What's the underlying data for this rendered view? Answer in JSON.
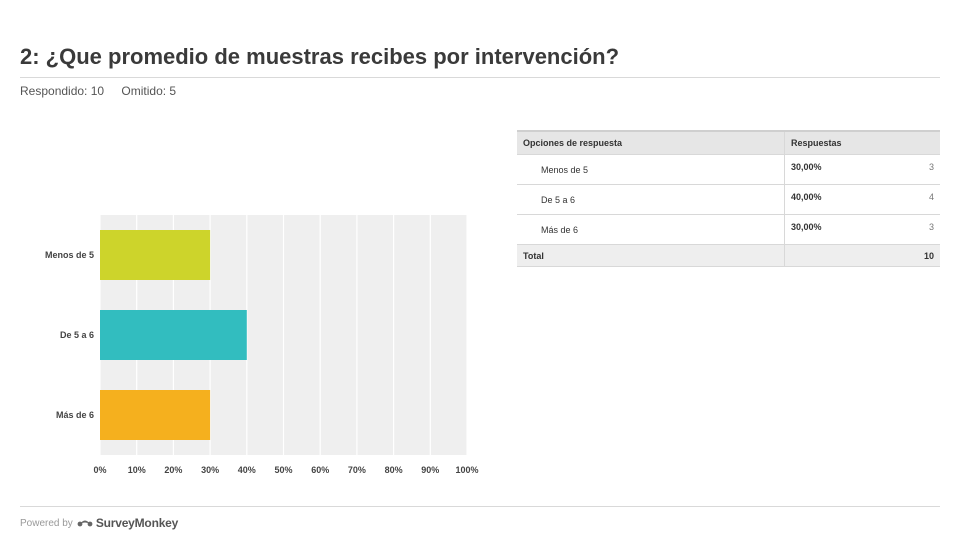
{
  "title": "2: ¿Que promedio de muestras recibes por intervención?",
  "meta": {
    "answered": "Respondido: 10",
    "skipped": "Omitido: 5"
  },
  "chart_data": {
    "type": "bar",
    "orientation": "horizontal",
    "categories": [
      "Menos de 5",
      "De 5 a 6",
      "Más de 6"
    ],
    "values": [
      30,
      40,
      30
    ],
    "colors": [
      "#cdd42b",
      "#32bdbf",
      "#f5b01e"
    ],
    "xlim": [
      0,
      100
    ],
    "x_ticks": [
      "0%",
      "10%",
      "20%",
      "30%",
      "40%",
      "50%",
      "60%",
      "70%",
      "80%",
      "90%",
      "100%"
    ],
    "grid": true
  },
  "table": {
    "headers": [
      "Opciones de respuesta",
      "Respuestas"
    ],
    "rows": [
      {
        "option": "Menos de 5",
        "percent": "30,00%",
        "count": "3"
      },
      {
        "option": "De 5 a 6",
        "percent": "40,00%",
        "count": "4"
      },
      {
        "option": "Más de 6",
        "percent": "30,00%",
        "count": "3"
      }
    ],
    "total_label": "Total",
    "total_value": "10"
  },
  "footer": {
    "powered_by": "Powered by",
    "brand": "SurveyMonkey"
  }
}
